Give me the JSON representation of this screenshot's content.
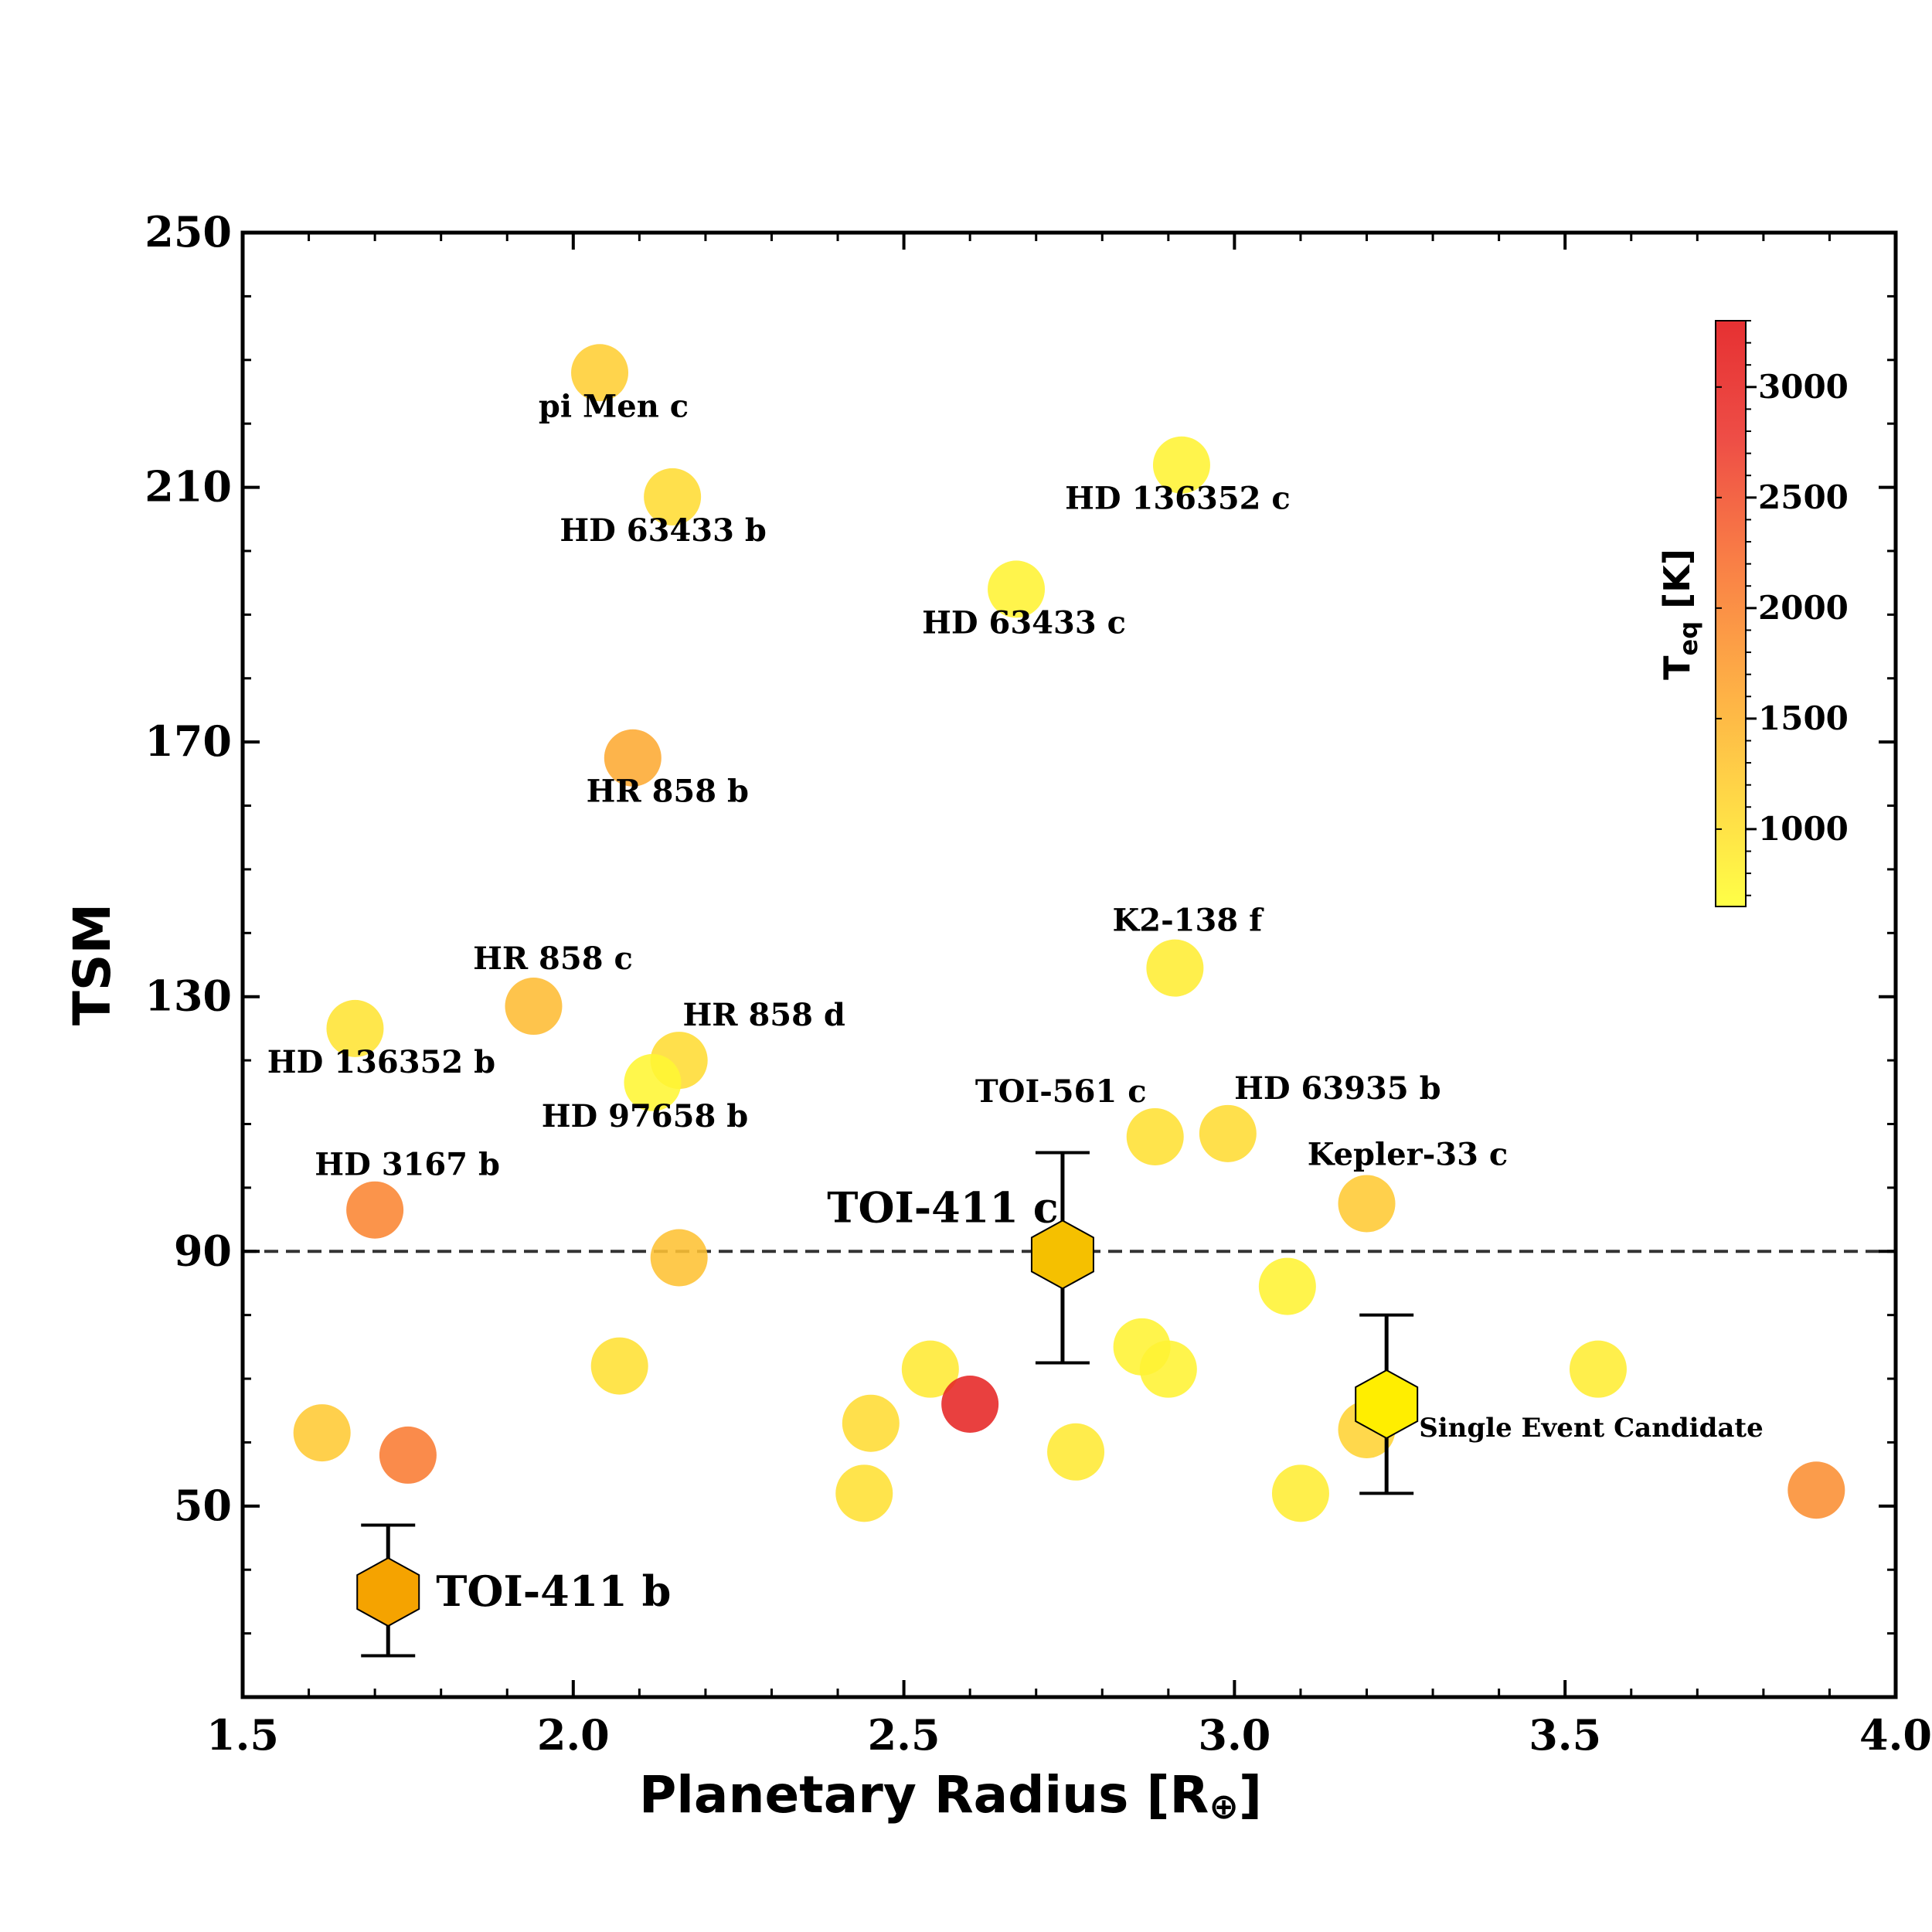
{
  "chart_data": {
    "type": "scatter",
    "xlabel": "Planetary Radius [R",
    "xlabel_symbol": "⊕",
    "xlabel_close": "]",
    "ylabel": "TSM",
    "xlim": [
      1.5,
      4.0
    ],
    "ylim": [
      20,
      250
    ],
    "xticks": [
      "1.5",
      "2.0",
      "2.5",
      "3.0",
      "3.5",
      "4.0"
    ],
    "yticks": [
      "50",
      "90",
      "130",
      "170",
      "210",
      "250"
    ],
    "threshold_line": 90,
    "colorbar": {
      "label_main": "T",
      "label_sub": "eq",
      "label_unit": " [K]",
      "range": [
        650,
        3300
      ],
      "ticks": [
        "1000",
        "1500",
        "2000",
        "2500",
        "3000"
      ],
      "colormap": [
        "#ffff33",
        "#ffd033",
        "#fda032",
        "#f86e32",
        "#ec3a32",
        "#e31a1c"
      ]
    },
    "points": [
      {
        "x": 2.04,
        "y": 228,
        "teq": 1200,
        "label": "pi Men c"
      },
      {
        "x": 2.15,
        "y": 208.5,
        "teq": 1050,
        "label": "HD 63433 b"
      },
      {
        "x": 2.92,
        "y": 213.5,
        "teq": 800,
        "label": "HD 136352 c"
      },
      {
        "x": 2.67,
        "y": 194,
        "teq": 800,
        "label": "HD 63433 c"
      },
      {
        "x": 2.09,
        "y": 167.5,
        "teq": 1600,
        "label": "HR 858 b"
      },
      {
        "x": 2.91,
        "y": 134.5,
        "teq": 850,
        "label": "K2-138 f"
      },
      {
        "x": 1.94,
        "y": 128.5,
        "teq": 1400,
        "label": "HR 858 c"
      },
      {
        "x": 1.67,
        "y": 125,
        "teq": 950,
        "label": "HD 136352 b"
      },
      {
        "x": 2.16,
        "y": 120,
        "teq": 1050,
        "label": "HR 858 d"
      },
      {
        "x": 2.12,
        "y": 116.5,
        "teq": 750,
        "label": "HD 97658 b"
      },
      {
        "x": 2.88,
        "y": 108,
        "teq": 1000,
        "label": "TOI-561 c"
      },
      {
        "x": 2.99,
        "y": 108.5,
        "teq": 1050,
        "label": "HD 63935 b"
      },
      {
        "x": 1.7,
        "y": 96.5,
        "teq": 2000,
        "label": "HD 3167 b"
      },
      {
        "x": 3.2,
        "y": 97.5,
        "teq": 1250,
        "label": "Kepler-33 c"
      },
      {
        "x": 2.16,
        "y": 89,
        "teq": 1350,
        "label": ""
      },
      {
        "x": 3.08,
        "y": 84.5,
        "teq": 800,
        "label": ""
      },
      {
        "x": 2.86,
        "y": 75,
        "teq": 800,
        "label": ""
      },
      {
        "x": 2.9,
        "y": 71.5,
        "teq": 800,
        "label": ""
      },
      {
        "x": 2.07,
        "y": 72,
        "teq": 1000,
        "label": ""
      },
      {
        "x": 2.54,
        "y": 71.5,
        "teq": 900,
        "label": ""
      },
      {
        "x": 3.55,
        "y": 71.5,
        "teq": 850,
        "label": ""
      },
      {
        "x": 2.6,
        "y": 66,
        "teq": 3100,
        "label": ""
      },
      {
        "x": 2.45,
        "y": 63,
        "teq": 1050,
        "label": ""
      },
      {
        "x": 1.62,
        "y": 61.5,
        "teq": 1250,
        "label": ""
      },
      {
        "x": 3.2,
        "y": 62,
        "teq": 1150,
        "label": ""
      },
      {
        "x": 2.76,
        "y": 58.5,
        "teq": 900,
        "label": ""
      },
      {
        "x": 1.75,
        "y": 58,
        "teq": 2100,
        "label": ""
      },
      {
        "x": 2.44,
        "y": 52,
        "teq": 1000,
        "label": ""
      },
      {
        "x": 3.1,
        "y": 52,
        "teq": 850,
        "label": ""
      },
      {
        "x": 3.88,
        "y": 52.5,
        "teq": 1900,
        "label": ""
      }
    ],
    "highlighted": [
      {
        "name": "TOI-411 c",
        "x": 2.74,
        "y": 89.5,
        "yerr_low": 17,
        "yerr_high": 16,
        "color": "#f5c000",
        "label_pos": "above-left"
      },
      {
        "name": "TOI-411 b",
        "x": 1.72,
        "y": 36.5,
        "yerr_low": 10,
        "yerr_high": 10.5,
        "color": "#f5a300",
        "label_pos": "right"
      },
      {
        "name": "Single Event Candidate",
        "x": 3.23,
        "y": 66,
        "yerr_low": 14,
        "yerr_high": 14,
        "color": "#ffee00",
        "label_pos": "right-small"
      }
    ]
  }
}
